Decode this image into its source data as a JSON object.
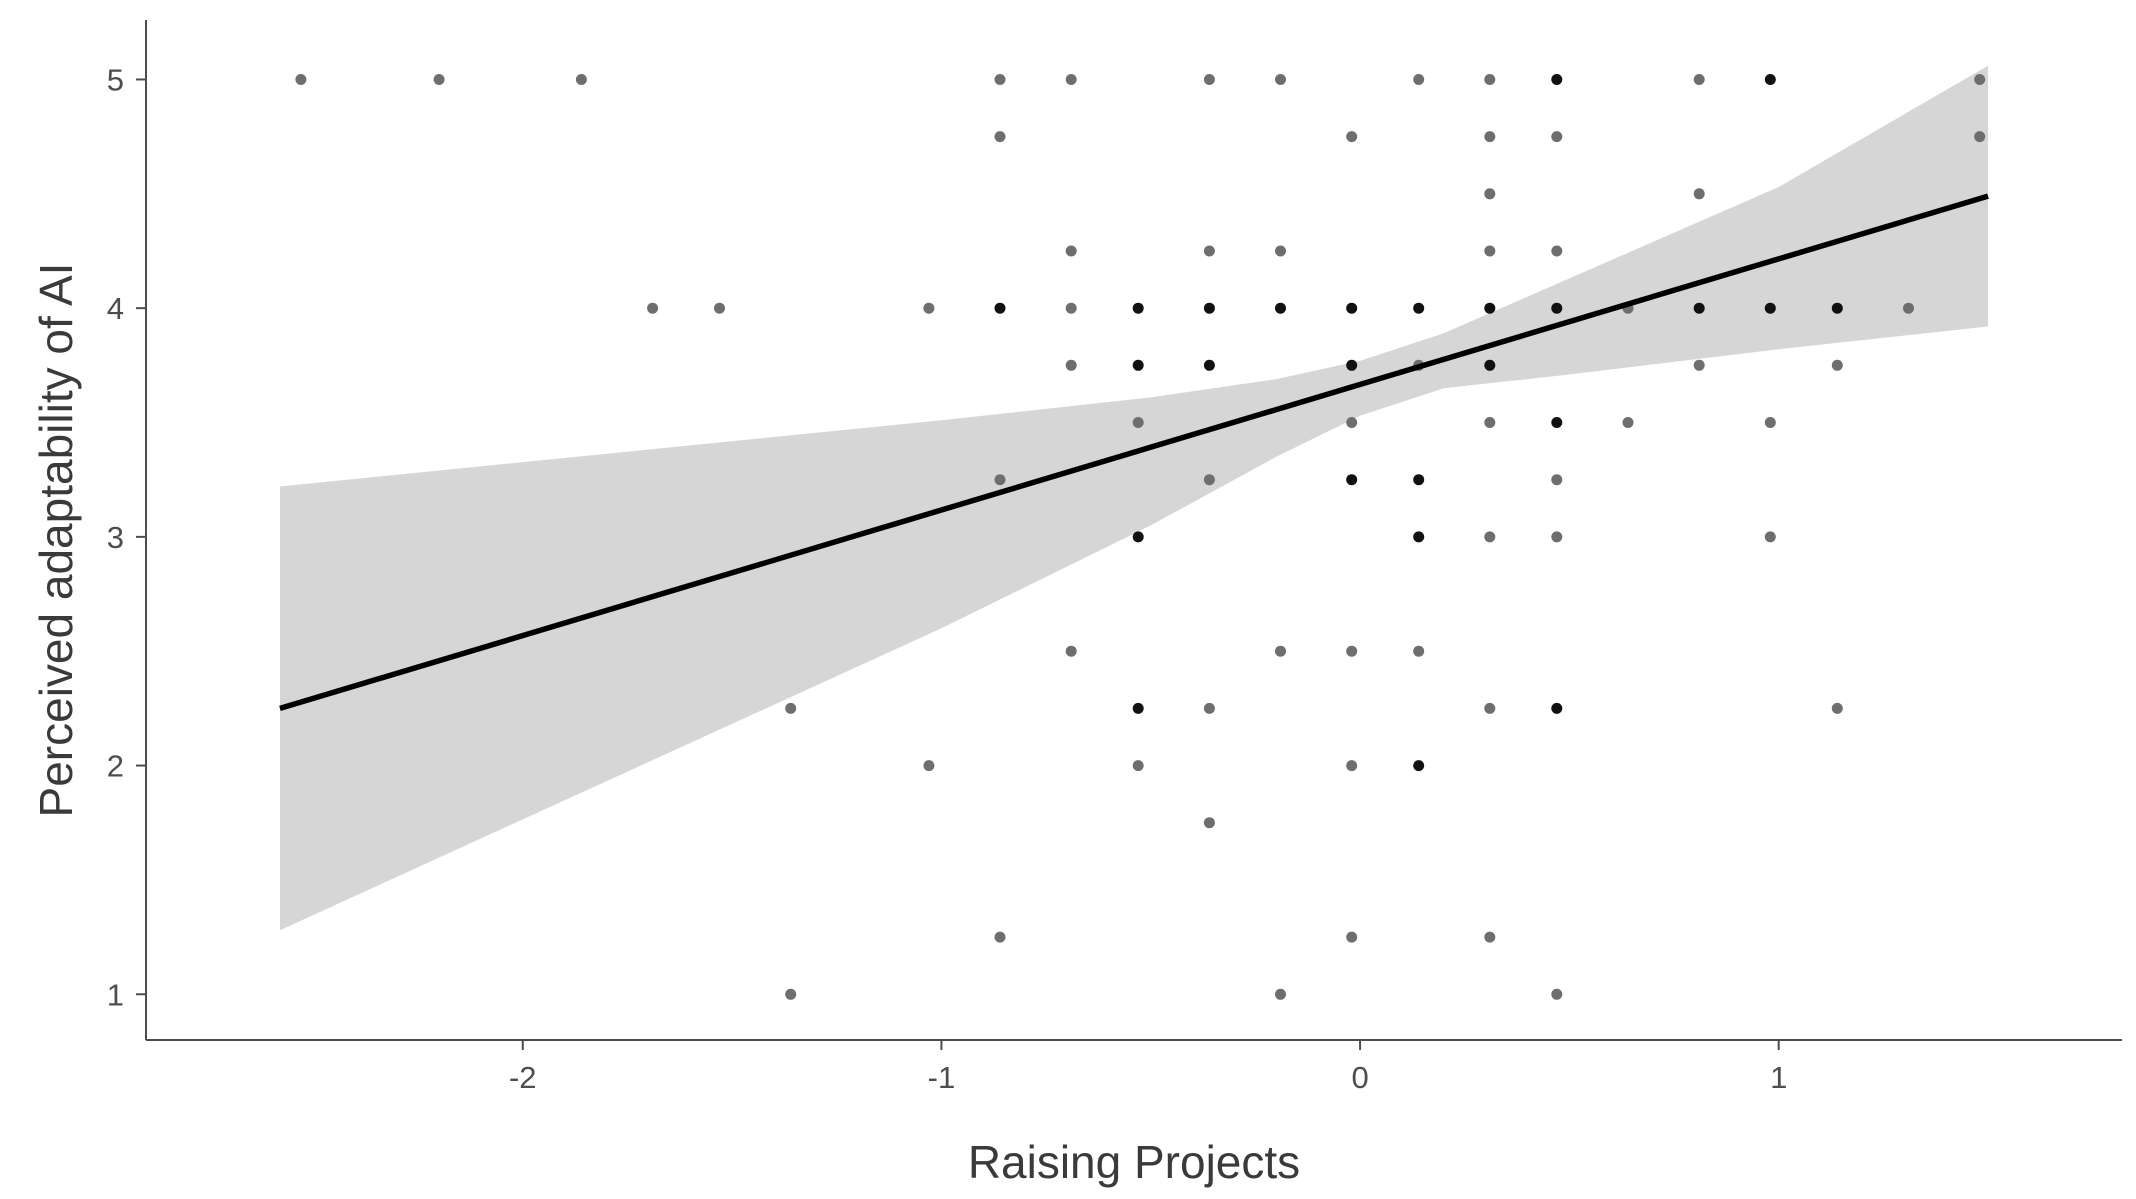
{
  "chart_data": {
    "type": "scatter",
    "title": "",
    "xlabel": "Raising Projects",
    "ylabel": "Perceived adaptability of AI",
    "xlim": [
      -2.9,
      1.82
    ],
    "ylim": [
      0.8,
      5.26
    ],
    "x_ticks": [
      -2,
      -1,
      0,
      1
    ],
    "y_ticks": [
      1,
      2,
      3,
      4,
      5
    ],
    "x_tick_labels": [
      "-2",
      "-1",
      "0",
      "1"
    ],
    "y_tick_labels": [
      "1",
      "2",
      "3",
      "4",
      "5"
    ],
    "grid": false,
    "legend": "none",
    "colors": {
      "point_light": "#6e6e6e",
      "point_dark": "#111111",
      "fit_line": "#000000",
      "confidence_band": "#d6d6d6",
      "axis": "#4d4d4d"
    },
    "fit_line": {
      "x": [
        -2.58,
        1.5
      ],
      "y": [
        2.25,
        4.49
      ]
    },
    "confidence_band": {
      "x": [
        -2.58,
        -1.0,
        -0.5,
        -0.2,
        0.0,
        0.2,
        0.5,
        1.0,
        1.5
      ],
      "upper": [
        3.22,
        3.51,
        3.61,
        3.69,
        3.77,
        3.89,
        4.13,
        4.53,
        5.06
      ],
      "lower": [
        1.28,
        2.6,
        3.05,
        3.35,
        3.53,
        3.65,
        3.71,
        3.82,
        3.92
      ]
    },
    "points": [
      {
        "x": -2.53,
        "y": 5.0,
        "dark": false
      },
      {
        "x": -2.2,
        "y": 5.0,
        "dark": false
      },
      {
        "x": -1.86,
        "y": 5.0,
        "dark": false
      },
      {
        "x": -0.86,
        "y": 5.0,
        "dark": false
      },
      {
        "x": -0.69,
        "y": 5.0,
        "dark": false
      },
      {
        "x": -0.36,
        "y": 5.0,
        "dark": false
      },
      {
        "x": -0.19,
        "y": 5.0,
        "dark": false
      },
      {
        "x": 0.14,
        "y": 5.0,
        "dark": false
      },
      {
        "x": 0.31,
        "y": 5.0,
        "dark": false
      },
      {
        "x": 0.47,
        "y": 5.0,
        "dark": true
      },
      {
        "x": 0.81,
        "y": 5.0,
        "dark": false
      },
      {
        "x": 0.98,
        "y": 5.0,
        "dark": true
      },
      {
        "x": 1.48,
        "y": 5.0,
        "dark": false
      },
      {
        "x": -0.86,
        "y": 4.75,
        "dark": false
      },
      {
        "x": -0.02,
        "y": 4.75,
        "dark": false
      },
      {
        "x": 0.31,
        "y": 4.75,
        "dark": false
      },
      {
        "x": 0.47,
        "y": 4.75,
        "dark": false
      },
      {
        "x": 1.48,
        "y": 4.75,
        "dark": false
      },
      {
        "x": 0.31,
        "y": 4.5,
        "dark": false
      },
      {
        "x": 0.81,
        "y": 4.5,
        "dark": false
      },
      {
        "x": -0.69,
        "y": 4.25,
        "dark": false
      },
      {
        "x": -0.36,
        "y": 4.25,
        "dark": false
      },
      {
        "x": -0.19,
        "y": 4.25,
        "dark": false
      },
      {
        "x": 0.31,
        "y": 4.25,
        "dark": false
      },
      {
        "x": 0.47,
        "y": 4.25,
        "dark": false
      },
      {
        "x": -1.69,
        "y": 4.0,
        "dark": false
      },
      {
        "x": -1.53,
        "y": 4.0,
        "dark": false
      },
      {
        "x": -1.03,
        "y": 4.0,
        "dark": false
      },
      {
        "x": -0.86,
        "y": 4.0,
        "dark": true
      },
      {
        "x": -0.69,
        "y": 4.0,
        "dark": false
      },
      {
        "x": -0.53,
        "y": 4.0,
        "dark": true
      },
      {
        "x": -0.36,
        "y": 4.0,
        "dark": true
      },
      {
        "x": -0.19,
        "y": 4.0,
        "dark": true
      },
      {
        "x": -0.02,
        "y": 4.0,
        "dark": true
      },
      {
        "x": 0.14,
        "y": 4.0,
        "dark": true
      },
      {
        "x": 0.31,
        "y": 4.0,
        "dark": true
      },
      {
        "x": 0.47,
        "y": 4.0,
        "dark": true
      },
      {
        "x": 0.64,
        "y": 4.0,
        "dark": false
      },
      {
        "x": 0.81,
        "y": 4.0,
        "dark": true
      },
      {
        "x": 0.98,
        "y": 4.0,
        "dark": true
      },
      {
        "x": 1.14,
        "y": 4.0,
        "dark": true
      },
      {
        "x": 1.31,
        "y": 4.0,
        "dark": false
      },
      {
        "x": -0.69,
        "y": 3.75,
        "dark": false
      },
      {
        "x": -0.53,
        "y": 3.75,
        "dark": true
      },
      {
        "x": -0.36,
        "y": 3.75,
        "dark": true
      },
      {
        "x": -0.02,
        "y": 3.75,
        "dark": true
      },
      {
        "x": 0.14,
        "y": 3.75,
        "dark": false
      },
      {
        "x": 0.31,
        "y": 3.75,
        "dark": true
      },
      {
        "x": 0.81,
        "y": 3.75,
        "dark": false
      },
      {
        "x": 1.14,
        "y": 3.75,
        "dark": false
      },
      {
        "x": -0.53,
        "y": 3.5,
        "dark": false
      },
      {
        "x": -0.02,
        "y": 3.5,
        "dark": false
      },
      {
        "x": 0.31,
        "y": 3.5,
        "dark": false
      },
      {
        "x": 0.47,
        "y": 3.5,
        "dark": true
      },
      {
        "x": 0.64,
        "y": 3.5,
        "dark": false
      },
      {
        "x": 0.98,
        "y": 3.5,
        "dark": false
      },
      {
        "x": -0.86,
        "y": 3.25,
        "dark": false
      },
      {
        "x": -0.36,
        "y": 3.25,
        "dark": false
      },
      {
        "x": -0.02,
        "y": 3.25,
        "dark": true
      },
      {
        "x": 0.14,
        "y": 3.25,
        "dark": true
      },
      {
        "x": 0.47,
        "y": 3.25,
        "dark": false
      },
      {
        "x": -0.53,
        "y": 3.0,
        "dark": true
      },
      {
        "x": 0.14,
        "y": 3.0,
        "dark": true
      },
      {
        "x": 0.31,
        "y": 3.0,
        "dark": false
      },
      {
        "x": 0.47,
        "y": 3.0,
        "dark": false
      },
      {
        "x": 0.98,
        "y": 3.0,
        "dark": false
      },
      {
        "x": -0.69,
        "y": 2.5,
        "dark": false
      },
      {
        "x": -0.19,
        "y": 2.5,
        "dark": false
      },
      {
        "x": -0.02,
        "y": 2.5,
        "dark": false
      },
      {
        "x": 0.14,
        "y": 2.5,
        "dark": false
      },
      {
        "x": -1.36,
        "y": 2.25,
        "dark": false
      },
      {
        "x": -0.53,
        "y": 2.25,
        "dark": true
      },
      {
        "x": -0.36,
        "y": 2.25,
        "dark": false
      },
      {
        "x": 0.31,
        "y": 2.25,
        "dark": false
      },
      {
        "x": 0.47,
        "y": 2.25,
        "dark": true
      },
      {
        "x": 1.14,
        "y": 2.25,
        "dark": false
      },
      {
        "x": -1.03,
        "y": 2.0,
        "dark": false
      },
      {
        "x": -0.53,
        "y": 2.0,
        "dark": false
      },
      {
        "x": -0.02,
        "y": 2.0,
        "dark": false
      },
      {
        "x": 0.14,
        "y": 2.0,
        "dark": true
      },
      {
        "x": -0.36,
        "y": 1.75,
        "dark": false
      },
      {
        "x": -0.86,
        "y": 1.25,
        "dark": false
      },
      {
        "x": -0.02,
        "y": 1.25,
        "dark": false
      },
      {
        "x": 0.31,
        "y": 1.25,
        "dark": false
      },
      {
        "x": -1.36,
        "y": 1.0,
        "dark": false
      },
      {
        "x": -0.19,
        "y": 1.0,
        "dark": false
      },
      {
        "x": 0.47,
        "y": 1.0,
        "dark": false
      }
    ]
  }
}
